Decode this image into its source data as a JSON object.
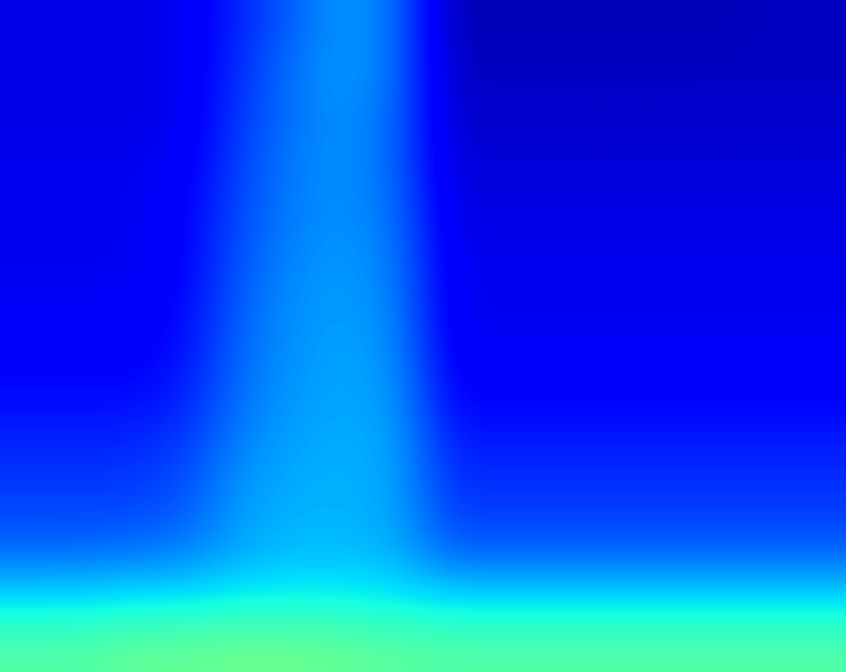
{
  "chart_data": {
    "type": "heatmap",
    "tick_labels": false,
    "color_range": [
      0,
      1
    ],
    "cells": [
      [
        0.09,
        0.09,
        0.09,
        0.1,
        0.16,
        0.22,
        0.28,
        0.24,
        0.05,
        0.05,
        0.05,
        0.05,
        0.05,
        0.05,
        0.06,
        0.06
      ],
      [
        0.09,
        0.09,
        0.09,
        0.1,
        0.17,
        0.24,
        0.28,
        0.24,
        0.06,
        0.06,
        0.06,
        0.06,
        0.06,
        0.06,
        0.06,
        0.06
      ],
      [
        0.09,
        0.09,
        0.09,
        0.1,
        0.18,
        0.24,
        0.27,
        0.23,
        0.07,
        0.07,
        0.07,
        0.07,
        0.07,
        0.07,
        0.07,
        0.07
      ],
      [
        0.1,
        0.1,
        0.1,
        0.11,
        0.19,
        0.25,
        0.27,
        0.23,
        0.08,
        0.08,
        0.08,
        0.08,
        0.08,
        0.08,
        0.08,
        0.08
      ],
      [
        0.1,
        0.1,
        0.1,
        0.12,
        0.2,
        0.25,
        0.27,
        0.24,
        0.09,
        0.09,
        0.09,
        0.09,
        0.09,
        0.09,
        0.09,
        0.09
      ],
      [
        0.1,
        0.1,
        0.1,
        0.12,
        0.21,
        0.26,
        0.28,
        0.25,
        0.1,
        0.1,
        0.1,
        0.1,
        0.1,
        0.1,
        0.1,
        0.1
      ],
      [
        0.11,
        0.11,
        0.11,
        0.13,
        0.22,
        0.27,
        0.28,
        0.26,
        0.1,
        0.1,
        0.1,
        0.1,
        0.1,
        0.1,
        0.1,
        0.1
      ],
      [
        0.12,
        0.12,
        0.12,
        0.14,
        0.23,
        0.27,
        0.29,
        0.27,
        0.11,
        0.11,
        0.11,
        0.11,
        0.11,
        0.11,
        0.11,
        0.11
      ],
      [
        0.14,
        0.14,
        0.14,
        0.16,
        0.24,
        0.28,
        0.29,
        0.28,
        0.13,
        0.13,
        0.13,
        0.13,
        0.13,
        0.13,
        0.13,
        0.13
      ],
      [
        0.17,
        0.17,
        0.17,
        0.19,
        0.26,
        0.29,
        0.3,
        0.29,
        0.16,
        0.16,
        0.16,
        0.16,
        0.16,
        0.16,
        0.16,
        0.16
      ],
      [
        0.19,
        0.19,
        0.19,
        0.21,
        0.28,
        0.3,
        0.3,
        0.29,
        0.18,
        0.18,
        0.18,
        0.18,
        0.18,
        0.18,
        0.18,
        0.18
      ],
      [
        0.23,
        0.23,
        0.24,
        0.25,
        0.29,
        0.31,
        0.31,
        0.3,
        0.22,
        0.22,
        0.22,
        0.22,
        0.22,
        0.22,
        0.22,
        0.22
      ],
      [
        0.35,
        0.35,
        0.36,
        0.36,
        0.37,
        0.37,
        0.37,
        0.36,
        0.35,
        0.35,
        0.35,
        0.35,
        0.35,
        0.35,
        0.35,
        0.35
      ],
      [
        0.45,
        0.45,
        0.47,
        0.47,
        0.48,
        0.48,
        0.47,
        0.46,
        0.45,
        0.45,
        0.45,
        0.45,
        0.45,
        0.45,
        0.45,
        0.45
      ]
    ]
  }
}
